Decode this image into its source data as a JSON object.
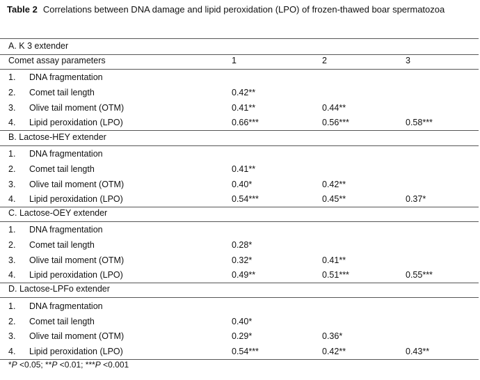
{
  "caption": {
    "label": "Table 2",
    "text": "Correlations between DNA damage and lipid peroxidation (LPO) of frozen-thawed boar spermatozoa"
  },
  "header": {
    "col0": "Comet assay parameters",
    "col1": "1",
    "col2": "2",
    "col3": "3"
  },
  "sections": [
    {
      "title": "A. K 3 extender",
      "rows": [
        {
          "num": "1.",
          "label": "DNA fragmentation",
          "c1": "",
          "c2": "",
          "c3": ""
        },
        {
          "num": "2.",
          "label": "Comet tail length",
          "c1": "0.42**",
          "c2": "",
          "c3": ""
        },
        {
          "num": "3.",
          "label": "Olive tail moment (OTM)",
          "c1": "0.41**",
          "c2": "0.44**",
          "c3": ""
        },
        {
          "num": "4.",
          "label": "Lipid peroxidation (LPO)",
          "c1": "0.66***",
          "c2": "0.56***",
          "c3": "0.58***"
        }
      ]
    },
    {
      "title": "B. Lactose-HEY extender",
      "rows": [
        {
          "num": "1.",
          "label": "DNA fragmentation",
          "c1": "",
          "c2": "",
          "c3": ""
        },
        {
          "num": "2.",
          "label": "Comet tail length",
          "c1": "0.41**",
          "c2": "",
          "c3": ""
        },
        {
          "num": "3.",
          "label": "Olive tail moment (OTM)",
          "c1": "0.40*",
          "c2": "0.42**",
          "c3": ""
        },
        {
          "num": "4.",
          "label": "Lipid peroxidation (LPO)",
          "c1": "0.54***",
          "c2": "0.45**",
          "c3": "0.37*"
        }
      ]
    },
    {
      "title": "C. Lactose-OEY extender",
      "rows": [
        {
          "num": "1.",
          "label": "DNA fragmentation",
          "c1": "",
          "c2": "",
          "c3": ""
        },
        {
          "num": "2.",
          "label": "Comet tail length",
          "c1": "0.28*",
          "c2": "",
          "c3": ""
        },
        {
          "num": "3.",
          "label": "Olive tail moment (OTM)",
          "c1": "0.32*",
          "c2": "0.41**",
          "c3": ""
        },
        {
          "num": "4.",
          "label": "Lipid peroxidation (LPO)",
          "c1": "0.49**",
          "c2": "0.51***",
          "c3": "0.55***"
        }
      ]
    },
    {
      "title": "D. Lactose-LPFo extender",
      "rows": [
        {
          "num": "1.",
          "label": "DNA fragmentation",
          "c1": "",
          "c2": "",
          "c3": ""
        },
        {
          "num": "2.",
          "label": "Comet tail length",
          "c1": "0.40*",
          "c2": "",
          "c3": ""
        },
        {
          "num": "3.",
          "label": "Olive tail moment (OTM)",
          "c1": "0.29*",
          "c2": "0.36*",
          "c3": ""
        },
        {
          "num": "4.",
          "label": "Lipid peroxidation (LPO)",
          "c1": "0.54***",
          "c2": "0.42**",
          "c3": "0.43**"
        }
      ]
    }
  ],
  "footnote": "*P <0.05; **P <0.01; ***P <0.001"
}
